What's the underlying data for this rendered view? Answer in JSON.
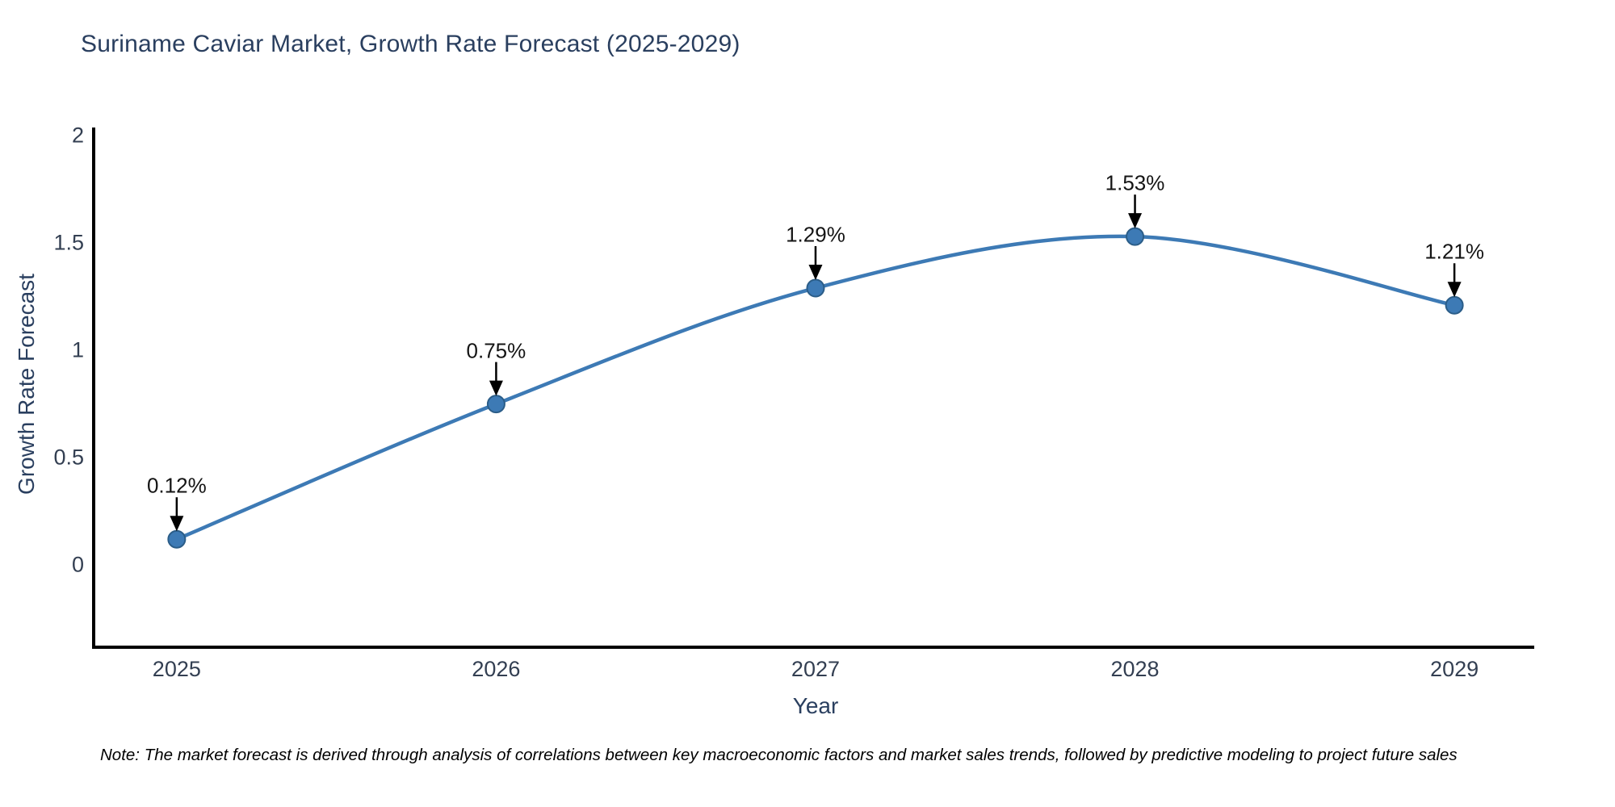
{
  "title": "Suriname Caviar Market, Growth Rate Forecast (2025-2029)",
  "note": "Note: The market forecast is derived through analysis of correlations between key macroeconomic factors and market sales trends, followed by predictive modeling to project future sales",
  "chart_data": {
    "type": "line",
    "title": "Suriname Caviar Market, Growth Rate Forecast (2025-2029)",
    "xlabel": "Year",
    "ylabel": "Growth Rate Forecast",
    "x": [
      2025,
      2026,
      2027,
      2028,
      2029
    ],
    "series": [
      {
        "name": "Growth Rate Forecast",
        "values": [
          0.12,
          0.75,
          1.29,
          1.53,
          1.21
        ]
      }
    ],
    "point_labels": [
      "0.12%",
      "0.75%",
      "1.29%",
      "1.53%",
      "1.21%"
    ],
    "xtick_labels": [
      "2025",
      "2026",
      "2027",
      "2028",
      "2029"
    ],
    "ytick_values": [
      0,
      0.5,
      1,
      1.5,
      2
    ],
    "ytick_labels": [
      "0",
      "0.5",
      "1",
      "1.5",
      "2"
    ],
    "xlim": [
      2024.74,
      2029.25
    ],
    "ylim": [
      -0.383,
      2.038
    ],
    "grid": false,
    "legend_position": "none",
    "smooth": true
  },
  "colors": {
    "background": "#ffffff",
    "title_text": "#2a3f5f",
    "axis_title_text": "#2a3f5f",
    "tick_text": "#333f52",
    "annotation_text": "#141414",
    "note_text": "#000000",
    "axis_line": "#000000",
    "series_line": "#3d7ab5",
    "marker_fill": "#3d7ab5",
    "marker_edge": "#2b5d88",
    "arrow": "#000000"
  }
}
